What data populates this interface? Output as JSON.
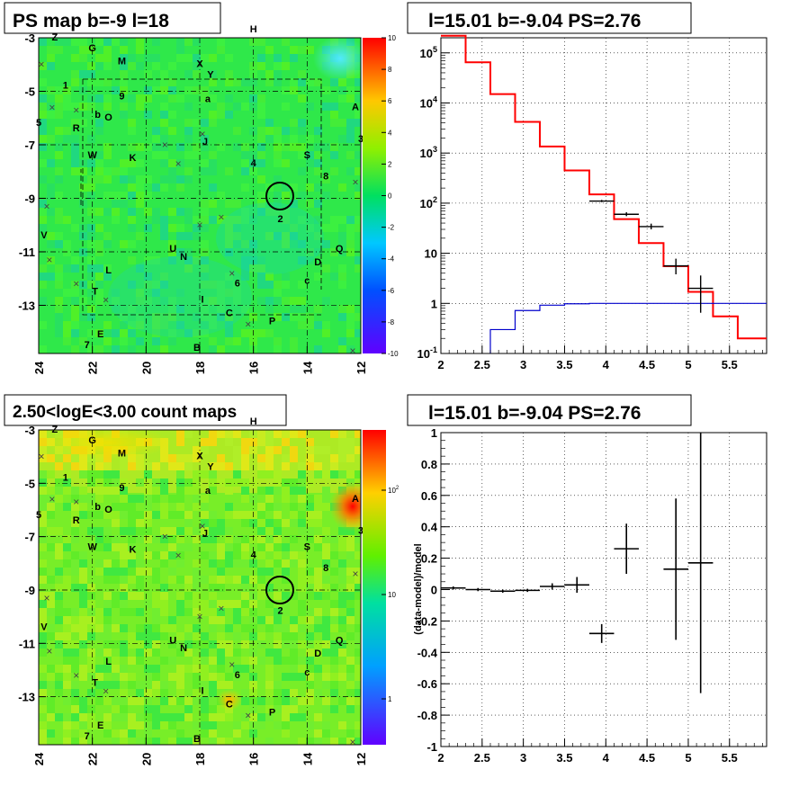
{
  "chart_data": [
    {
      "type": "heatmap",
      "title": "PS map b=-9 l=18",
      "x_ticks": [
        "24",
        "22",
        "20",
        "18",
        "16",
        "14",
        "12"
      ],
      "y_ticks": [
        "-3",
        "-5",
        "-7",
        "-9",
        "-11",
        "-13"
      ],
      "xlim": [
        24,
        12
      ],
      "ylim": [
        -14.8,
        -3
      ],
      "palette_ticks": [
        "10",
        "8",
        "6",
        "4",
        "2",
        "0",
        "-2",
        "-4",
        "-6",
        "-8",
        "-10"
      ],
      "palette_range": [
        -10,
        10
      ],
      "source_labels": [
        {
          "t": "Z",
          "l": 23.4,
          "b": -3.1
        },
        {
          "t": "G",
          "l": 22.0,
          "b": -3.5
        },
        {
          "t": "M",
          "l": 20.9,
          "b": -4.0
        },
        {
          "t": "X",
          "l": 18.0,
          "b": -4.1
        },
        {
          "t": "H",
          "l": 16.0,
          "b": -2.8
        },
        {
          "t": "Y",
          "l": 17.6,
          "b": -4.5
        },
        {
          "t": "1",
          "l": 23.0,
          "b": -4.9
        },
        {
          "t": "9",
          "l": 20.9,
          "b": -5.3
        },
        {
          "t": "a",
          "l": 17.7,
          "b": -5.4
        },
        {
          "t": "5",
          "l": 24.0,
          "b": -6.3
        },
        {
          "t": "b",
          "l": 21.8,
          "b": -6.0
        },
        {
          "t": "O",
          "l": 21.4,
          "b": -6.1
        },
        {
          "t": "A",
          "l": 12.2,
          "b": -5.7
        },
        {
          "t": "R",
          "l": 22.6,
          "b": -6.5
        },
        {
          "t": "J",
          "l": 17.8,
          "b": -7.0
        },
        {
          "t": "3",
          "l": 12.0,
          "b": -6.9
        },
        {
          "t": "W",
          "l": 22.0,
          "b": -7.5
        },
        {
          "t": "K",
          "l": 20.5,
          "b": -7.6
        },
        {
          "t": "S",
          "l": 14.0,
          "b": -7.5
        },
        {
          "t": "4",
          "l": 16.0,
          "b": -7.8
        },
        {
          "t": "8",
          "l": 13.3,
          "b": -8.3
        },
        {
          "t": "2",
          "l": 15.0,
          "b": -9.9
        },
        {
          "t": "V",
          "l": 23.8,
          "b": -10.5
        },
        {
          "t": "U",
          "l": 19.0,
          "b": -11.0
        },
        {
          "t": "N",
          "l": 18.6,
          "b": -11.3
        },
        {
          "t": "D",
          "l": 13.6,
          "b": -11.5
        },
        {
          "t": "Q",
          "l": 12.8,
          "b": -11.0
        },
        {
          "t": "L",
          "l": 21.4,
          "b": -11.8
        },
        {
          "t": "6",
          "l": 16.6,
          "b": -12.3
        },
        {
          "t": "c",
          "l": 14.0,
          "b": -12.2
        },
        {
          "t": "T",
          "l": 21.9,
          "b": -12.6
        },
        {
          "t": "I",
          "l": 17.9,
          "b": -12.9
        },
        {
          "t": "C",
          "l": 16.9,
          "b": -13.4
        },
        {
          "t": "P",
          "l": 15.3,
          "b": -13.7
        },
        {
          "t": "E",
          "l": 21.7,
          "b": -14.2
        },
        {
          "t": "7",
          "l": 22.2,
          "b": -14.6
        },
        {
          "t": "B",
          "l": 18.1,
          "b": -14.7
        }
      ]
    },
    {
      "type": "line",
      "title": "l=15.01 b=-9.04 PS=2.76",
      "xlim": [
        2,
        5.95
      ],
      "ylim": [
        0.1,
        200000
      ],
      "yscale": "log",
      "x_ticks": [
        "2",
        "2.5",
        "3",
        "3.5",
        "4",
        "4.5",
        "5",
        "5.5"
      ],
      "y_ticks": [
        "10^-1",
        "1",
        "10",
        "10^2",
        "10^3",
        "10^4",
        "10^5"
      ],
      "series": [
        {
          "edges": [
            2.0,
            2.3,
            2.6,
            2.9,
            3.2,
            3.5,
            3.8,
            4.1,
            4.4,
            4.7,
            5.0,
            5.3,
            5.6,
            5.95
          ],
          "values": [
            220000,
            65000,
            15000,
            4200,
            1350,
            450,
            150,
            48,
            16,
            5.5,
            1.7,
            0.55,
            0.2
          ],
          "color": "#ff0000"
        },
        {
          "edges": [
            2.6,
            2.9,
            3.2,
            3.5,
            3.8,
            4.1,
            4.4,
            4.7,
            5.0,
            5.3,
            5.6,
            5.95
          ],
          "values": [
            0.3,
            0.72,
            0.92,
            0.98,
            1.0,
            1.0,
            1.0,
            1.0,
            1.0,
            1.0,
            1.0
          ],
          "color": "#0000cc"
        }
      ],
      "points": [
        {
          "x": 3.95,
          "xerr": 0.15,
          "y": 110,
          "ylo": 105,
          "yhi": 116
        },
        {
          "x": 4.25,
          "xerr": 0.15,
          "y": 60,
          "ylo": 55,
          "yhi": 66
        },
        {
          "x": 4.55,
          "xerr": 0.15,
          "y": 34,
          "ylo": 30,
          "yhi": 39
        },
        {
          "x": 4.85,
          "xerr": 0.15,
          "y": 5.6,
          "ylo": 3.8,
          "yhi": 7.8
        },
        {
          "x": 5.15,
          "xerr": 0.15,
          "y": 2.0,
          "ylo": 0.65,
          "yhi": 3.6
        }
      ]
    },
    {
      "type": "heatmap",
      "title": "2.50<logE<3.00 count maps",
      "x_ticks": [
        "24",
        "22",
        "20",
        "18",
        "16",
        "14",
        "12"
      ],
      "y_ticks": [
        "-3",
        "-5",
        "-7",
        "-9",
        "-11",
        "-13"
      ],
      "xlim": [
        24,
        12
      ],
      "ylim": [
        -14.8,
        -3
      ],
      "palette_ticks": [
        "10^2",
        "10",
        "1"
      ],
      "palette_scale": "log"
    },
    {
      "type": "scatter",
      "title": "l=15.01 b=-9.04 PS=2.76",
      "ylabel": "(data-model)/model",
      "xlim": [
        2,
        5.95
      ],
      "ylim": [
        -1,
        1
      ],
      "x_ticks": [
        "2",
        "2.5",
        "3",
        "3.5",
        "4",
        "4.5",
        "5",
        "5.5"
      ],
      "y_ticks": [
        "1",
        "0.8",
        "0.6",
        "0.4",
        "0.2",
        "0",
        "-0.2",
        "-0.4",
        "-0.6",
        "-0.8",
        "-1"
      ],
      "points": [
        {
          "x": 2.15,
          "xerr": 0.15,
          "y": 0.01,
          "err": 0.01
        },
        {
          "x": 2.45,
          "xerr": 0.15,
          "y": 0.0,
          "err": 0.01
        },
        {
          "x": 2.75,
          "xerr": 0.15,
          "y": -0.01,
          "err": 0.01
        },
        {
          "x": 3.05,
          "xerr": 0.15,
          "y": -0.005,
          "err": 0.01
        },
        {
          "x": 3.35,
          "xerr": 0.15,
          "y": 0.02,
          "err": 0.02
        },
        {
          "x": 3.65,
          "xerr": 0.15,
          "y": 0.03,
          "err": 0.05
        },
        {
          "x": 3.95,
          "xerr": 0.15,
          "y": -0.28,
          "err": 0.06
        },
        {
          "x": 4.25,
          "xerr": 0.15,
          "y": 0.26,
          "err": 0.16
        },
        {
          "x": 4.85,
          "xerr": 0.15,
          "y": 0.13,
          "err": 0.45
        },
        {
          "x": 5.15,
          "xerr": 0.15,
          "y": 0.17,
          "err": 0.83
        }
      ]
    }
  ]
}
